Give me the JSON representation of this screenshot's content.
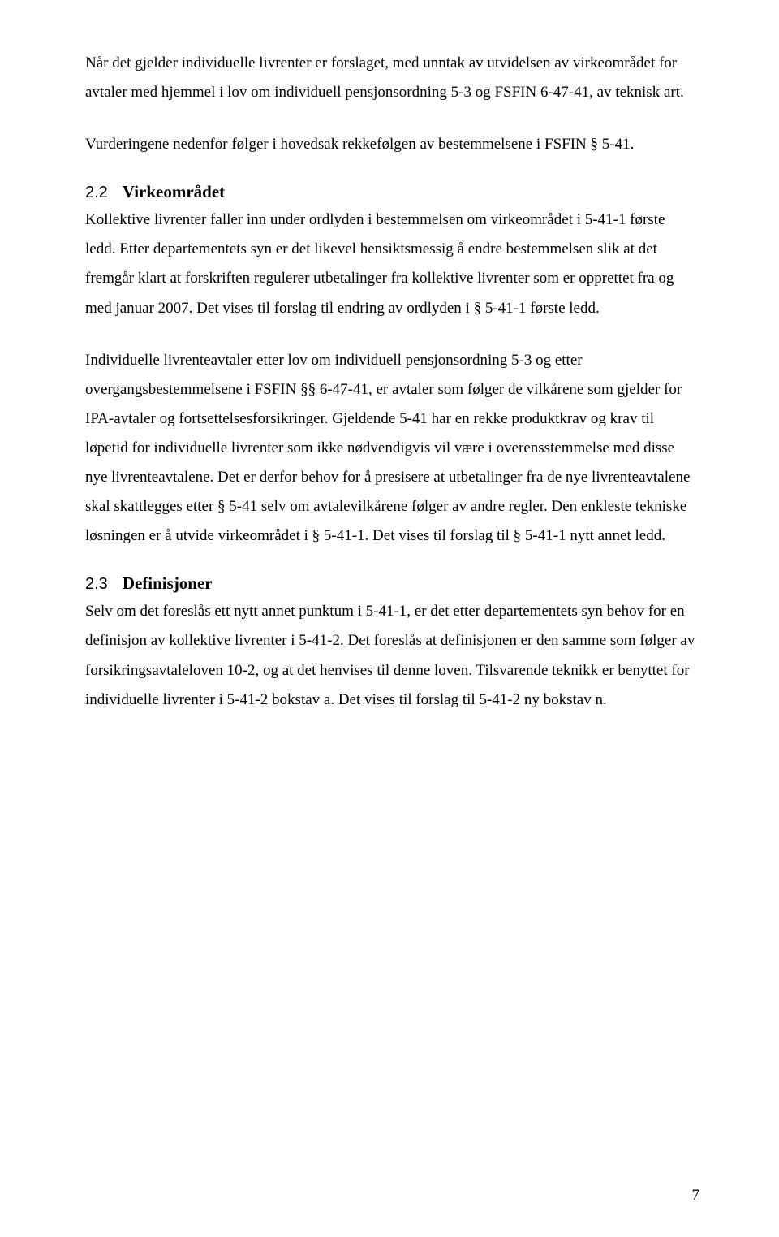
{
  "para1": "Når det gjelder individuelle livrenter er forslaget, med unntak av utvidelsen av virkeområdet for avtaler med hjemmel i lov om individuell pensjonsordning 5-3 og FSFIN 6-47-41, av teknisk art.",
  "para2": "Vurderingene nedenfor følger i hovedsak rekkefølgen av bestemmelsene i FSFIN § 5-41.",
  "heading1": {
    "num": "2.2",
    "title": "Virkeområdet"
  },
  "para3": "Kollektive livrenter faller inn under ordlyden i bestemmelsen om virkeområdet i 5-41-1 første ledd. Etter departementets syn er det likevel hensiktsmessig å endre bestemmelsen slik at det fremgår klart at forskriften regulerer utbetalinger fra kollektive livrenter som er opprettet fra og med januar 2007. Det vises til forslag til endring av ordlyden i § 5-41-1 første ledd.",
  "para4": "Individuelle livrenteavtaler etter lov om individuell pensjonsordning 5-3 og etter overgangsbestemmelsene i FSFIN §§ 6-47-41, er avtaler som følger de vilkårene som gjelder for IPA-avtaler og fortsettelsesforsikringer. Gjeldende 5-41 har en rekke produktkrav og krav til løpetid for individuelle livrenter som ikke nødvendigvis vil være i overensstemmelse med disse nye livrenteavtalene. Det er derfor behov for å presisere at utbetalinger fra de nye livrenteavtalene skal skattlegges etter § 5-41 selv om avtalevilkårene følger av andre regler. Den enkleste tekniske løsningen er å utvide virkeområdet i § 5-41-1. Det vises til forslag til § 5-41-1 nytt annet ledd.",
  "heading2": {
    "num": "2.3",
    "title": "Definisjoner"
  },
  "para5": "Selv om det foreslås ett nytt annet punktum i 5-41-1, er det etter departementets syn behov for en definisjon av kollektive livrenter i 5-41-2. Det foreslås at definisjonen er den samme som følger av forsikringsavtaleloven 10-2, og at det henvises til denne loven. Tilsvarende teknikk er benyttet for individuelle livrenter i 5-41-2 bokstav a.  Det vises til forslag til 5-41-2 ny bokstav n.",
  "pageNumber": "7"
}
